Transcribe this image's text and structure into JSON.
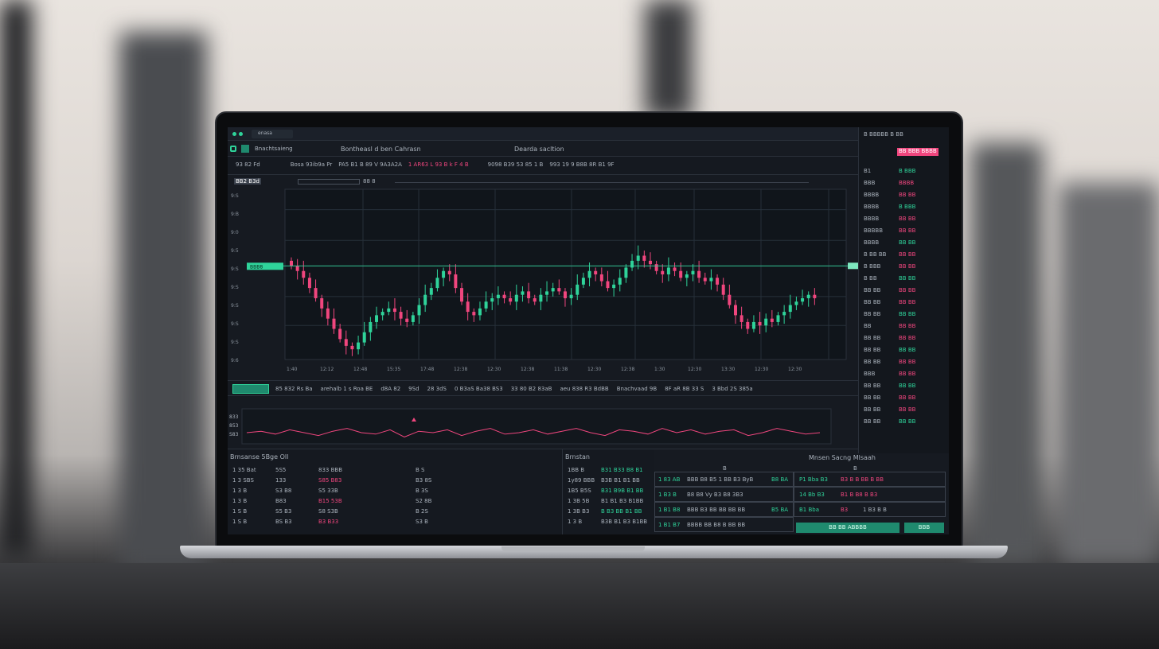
{
  "window": {
    "title": "Bnachtsaieng",
    "app_title": "Bontheasl d ben Cahrasn",
    "right_title": "Dearda sacltion",
    "top_tab": "enasa"
  },
  "toolbar": {
    "items": [
      "93 82 Fd",
      "Bosa 93ib9a Pr",
      "PA5 B1 B 89 V 9A3A2A",
      "1 AR63 L 93 B k F 4 B",
      "9098 B39 53 85 1 B",
      "993 19 9 B8B 8R B1 9F"
    ],
    "chart_label": "BB2 B3d",
    "sub_label": "88 8"
  },
  "chart_data": {
    "type": "candlestick",
    "ylim": [
      0,
      100
    ],
    "closes": [
      55,
      52,
      48,
      42,
      36,
      30,
      24,
      18,
      12,
      8,
      6,
      10,
      16,
      22,
      26,
      28,
      30,
      28,
      24,
      22,
      26,
      32,
      38,
      42,
      48,
      52,
      50,
      42,
      34,
      28,
      26,
      30,
      34,
      36,
      38,
      36,
      34,
      38,
      40,
      36,
      34,
      38,
      40,
      42,
      40,
      36,
      38,
      44,
      48,
      52,
      50,
      46,
      42,
      44,
      48,
      54,
      58,
      61,
      58,
      56,
      52,
      50,
      54,
      52,
      48,
      50,
      52,
      48,
      46,
      48,
      44,
      38,
      32,
      26,
      22,
      18,
      22,
      20,
      24,
      22,
      26,
      28,
      32,
      34,
      36,
      38,
      36
    ],
    "x_ticks": [
      "1:40",
      "12:12",
      "12:48",
      "15:35",
      "17:48",
      "12:38",
      "12:30",
      "12:38",
      "11:38",
      "12:30",
      "12:38",
      "1:30",
      "12:30",
      "13:30",
      "12:30",
      "12:30"
    ],
    "y_ticks": [
      "9:S",
      "9:B",
      "9:0",
      "9:5",
      "9:S",
      "9:S",
      "9:S",
      "9:S",
      "9:S",
      "9:6"
    ],
    "current_label": "BBB8",
    "oscillator": [
      0,
      1,
      -1,
      2,
      0,
      -2,
      1,
      3,
      0,
      -1,
      2,
      -3,
      1,
      0,
      2,
      -2,
      1,
      3,
      -1,
      0,
      2,
      -1,
      1,
      3,
      0,
      -2,
      2,
      1,
      -1,
      3,
      0,
      2,
      -1,
      1,
      2,
      -2,
      0,
      3,
      1,
      -1,
      0
    ],
    "oscillator_labels": [
      "833",
      "853",
      "S83"
    ]
  },
  "legend_row": [
    "85 832 Rs Ba",
    "arehalb 1 s Roa BE",
    "d8A 82",
    "9Sd",
    "28 3dS",
    "0 B3aS Ba38 BS3",
    "33 80 B2 83aB",
    "aeu 838 R3 BdBB",
    "Bnachvaad 9B",
    "8F aR 8B 33 S",
    "3 Bbd 2S 385a"
  ],
  "order_book": {
    "title": "Brnsanse 5Bge Oll",
    "rows": [
      [
        "1 35 Bat",
        "5S5",
        "833 BBB",
        "B S"
      ],
      [
        "1 3 SBS",
        "133",
        "S85 B83",
        "B3 8S"
      ],
      [
        "1 3 B",
        "S3 B8",
        "S5 33B",
        "B 3S"
      ],
      [
        "1 3 B",
        "B83",
        "B15 53B",
        "S2 8B"
      ],
      [
        "1 S B",
        "S5 B3",
        "S8 S3B",
        "B 2S"
      ],
      [
        "1 S B",
        "BS B3",
        "B3 B33",
        "S3 B"
      ]
    ]
  },
  "trades": {
    "title": "Brnstan",
    "rows": [
      [
        "1BB B",
        "B31 B33 B8 B1"
      ],
      [
        "1y89 BBB",
        "B3B B1 B1 BB"
      ],
      [
        "1B5 B5S",
        "B31 B9B B1 BB"
      ],
      [
        "1 3B 5B",
        "B1 B1 B3 B1BB"
      ],
      [
        "1 3B B3",
        "B B3 BB B1 BB"
      ],
      [
        "1 3 B",
        "B3B B1 B3 B1BB"
      ]
    ]
  },
  "order_entry": {
    "title": "Mnsen Sacng Mlsaah",
    "col_a": "B",
    "col_b": "B",
    "rows": [
      [
        "1 83 AB",
        "BBB B8 B5 1 BB B3 ByB",
        "B8 BA"
      ],
      [
        "1 B3 B",
        "B8 B8 Vy B3 B8 3B3"
      ],
      [
        "1 B1 B8",
        "BBB B3 BB BB BB BB",
        "B5 BA"
      ],
      [
        "1 B1 B7",
        "BBBB BB B8 B BB BB"
      ]
    ],
    "rows_b": [
      [
        "P1 Bba B3",
        "B3 B B BB B BB"
      ],
      [
        "14 Bb B3",
        "B1 B B8 B B3"
      ],
      [
        "B1 Bba",
        "B3",
        "1 B3 B B"
      ]
    ],
    "buy_label": "BB BB ABBBB",
    "sell_label": "BBB"
  },
  "watchlist": {
    "header": "B BBBBB B BB",
    "rows": [
      [
        "B1",
        "B BBB"
      ],
      [
        "BBB",
        "BBBB"
      ],
      [
        "BBBB",
        "BB BB"
      ],
      [
        "BBBB",
        "B BBB"
      ],
      [
        "BBBB",
        "BB BB"
      ],
      [
        "BBBBB",
        "BB BB"
      ],
      [
        "BBBB",
        "BB BB"
      ],
      [
        "B BB BB",
        "BB BB"
      ],
      [
        "B BBB",
        "BB BB"
      ],
      [
        "B BB",
        "BB BB"
      ],
      [
        "BB BB",
        "BB BB"
      ],
      [
        "BB BB",
        "BB BB"
      ],
      [
        "BB BB",
        "BB BB"
      ],
      [
        "BB",
        "BB BB"
      ],
      [
        "BB BB",
        "BB BB"
      ],
      [
        "BB BB",
        "BB BB"
      ],
      [
        "BB BB",
        "BB BB"
      ],
      [
        "BBB",
        "BB BB"
      ],
      [
        "BB BB",
        "BB BB"
      ],
      [
        "BB BB",
        "BB BB"
      ],
      [
        "BB BB",
        "BB BB"
      ],
      [
        "BB BB",
        "BB BB"
      ]
    ],
    "highlight": "BB BBB BBBB"
  },
  "colors": {
    "up": "#2fd39a",
    "down": "#f0467e",
    "bg": "#161a21",
    "panel": "#1b2029",
    "accent": "#1f8a6e"
  }
}
